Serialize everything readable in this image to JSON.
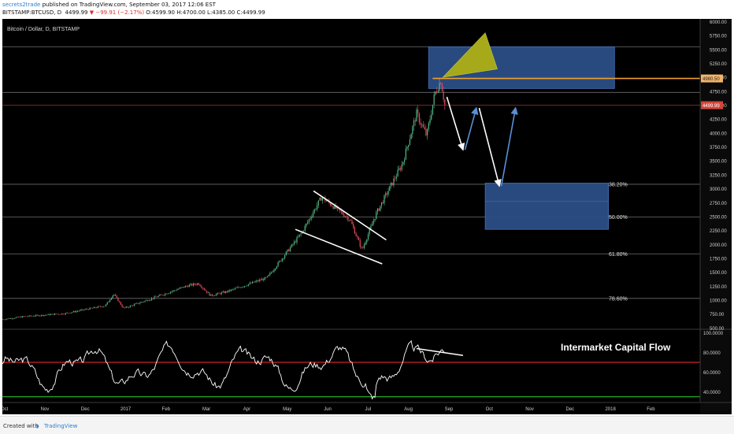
{
  "header": {
    "author": "secrets2trade",
    "published": "published on TradingView.com, September 03, 2017 12:06 EST",
    "symbol": "BITSTAMP:BTCUSD, D",
    "last": "4499.99",
    "change": "−99.91 (−2.17%)",
    "open": "O:4599.90",
    "high": "H:4700.00",
    "low": "L:4385.00",
    "close": "C:4499.99"
  },
  "footer": {
    "created_with": "Created with",
    "brand": "TradingView"
  },
  "colors": {
    "background": "#000000",
    "candle_up": "#53b987",
    "candle_down": "#eb4d5c",
    "rsi_line": "#ffffff",
    "rsi_upper": "#ff2a2a",
    "rsi_lower": "#2ed62e",
    "zone_fill": "#2b4f86",
    "target_line": "#f0a030",
    "pennant": "#a5a91a",
    "arrow_white": "#ffffff",
    "arrow_blue": "#5b8fd6"
  },
  "chart_data": {
    "type": "candlestick",
    "title": "Bitcoin / Dollar, D, BITSTAMP",
    "x_months": [
      "Oct",
      "Nov",
      "Dec",
      "2017",
      "Feb",
      "Mar",
      "Apr",
      "May",
      "Jun",
      "Jul",
      "Aug",
      "Sep",
      "Oct",
      "Nov",
      "Dec",
      "2018",
      "Feb"
    ],
    "y_ticks": [
      "6000.00",
      "5750.00",
      "5500.00",
      "5250.00",
      "5000.00",
      "4750.00",
      "4500.00",
      "4250.00",
      "4000.00",
      "3750.00",
      "3500.00",
      "3250.00",
      "3000.00",
      "2750.00",
      "2500.00",
      "2250.00",
      "2000.00",
      "1750.00",
      "1500.00",
      "1250.00",
      "1000.00",
      "750.00",
      "500.00"
    ],
    "ylim": [
      490,
      6050
    ],
    "price_path": [
      [
        0,
        610
      ],
      [
        1,
        705
      ],
      [
        2,
        760
      ],
      [
        3,
        900
      ],
      [
        3.2,
        1110
      ],
      [
        3.45,
        850
      ],
      [
        4,
        990
      ],
      [
        5,
        1250
      ],
      [
        5.3,
        1300
      ],
      [
        5.6,
        1080
      ],
      [
        6,
        1150
      ],
      [
        7,
        1400
      ],
      [
        7.85,
        2200
      ],
      [
        8.35,
        2850
      ],
      [
        9.05,
        2450
      ],
      [
        9.35,
        1900
      ],
      [
        9.7,
        2550
      ],
      [
        10.35,
        3450
      ],
      [
        10.7,
        4350
      ],
      [
        10.95,
        3950
      ],
      [
        11.15,
        4700
      ],
      [
        11.3,
        4950
      ],
      [
        11.4,
        4500
      ]
    ],
    "current_price": "4499.99",
    "target_price": "4980.50",
    "fib_levels": [
      {
        "label": "38.20%",
        "price": 3080
      },
      {
        "label": "50.00%",
        "price": 2490
      },
      {
        "label": "61.80%",
        "price": 1830
      },
      {
        "label": "78.60%",
        "price": 1030
      }
    ],
    "indicator": {
      "name": "Intermarket Capital Flow",
      "ticks": [
        "100.0000",
        "80.0000",
        "60.0000",
        "40.0000"
      ],
      "ylim": [
        30,
        102
      ],
      "upper_band": 70,
      "lower_band": 35
    }
  }
}
